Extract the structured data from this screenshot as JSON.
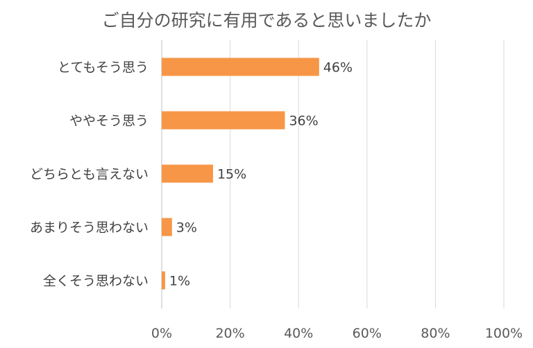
{
  "chart_data": {
    "type": "bar",
    "orientation": "horizontal",
    "title": "ご自分の研究に有用であると思いましたか",
    "categories": [
      "とてもそう思う",
      "ややそう思う",
      "どちらとも言えない",
      "あまりそう思わない",
      "全くそう思わない"
    ],
    "values": [
      46,
      36,
      15,
      3,
      1
    ],
    "data_labels": [
      "46%",
      "36%",
      "15%",
      "3%",
      "1%"
    ],
    "xlim": [
      0,
      100
    ],
    "x_ticks": [
      0,
      20,
      40,
      60,
      80,
      100
    ],
    "x_tick_labels": [
      "0%",
      "20%",
      "40%",
      "60%",
      "80%",
      "100%"
    ],
    "grid": true,
    "bar_color": "#F79646"
  }
}
